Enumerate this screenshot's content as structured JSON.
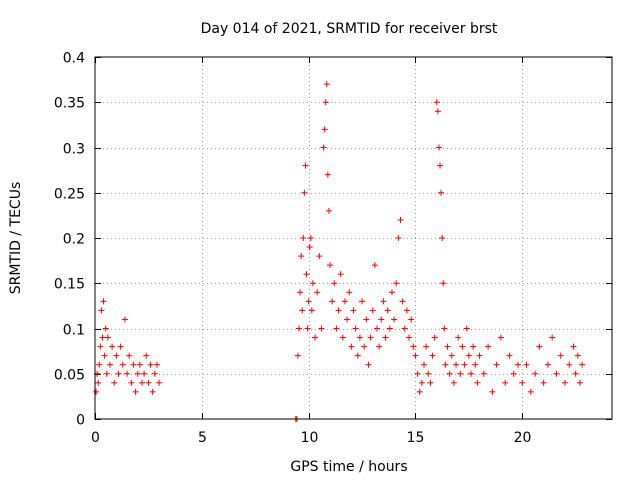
{
  "chart_data": {
    "type": "scatter",
    "title": "Day 014 of 2021, SRMTID for receiver brst",
    "xlabel": "GPS time / hours",
    "ylabel": "SRMTID / TECUs",
    "xlim": [
      0,
      24.2
    ],
    "ylim": [
      0,
      0.4
    ],
    "xticks": [
      0,
      5,
      10,
      15,
      20
    ],
    "xtick_labels": [
      "0",
      "5",
      "10",
      "15",
      "20"
    ],
    "yticks": [
      0,
      0.05,
      0.1,
      0.15,
      0.2,
      0.25,
      0.3,
      0.35,
      0.4
    ],
    "ytick_labels": [
      "0",
      "0.05",
      "0.1",
      "0.15",
      "0.2",
      "0.25",
      "0.3",
      "0.35",
      "0.4"
    ],
    "grid": true,
    "marker": "plus",
    "color": "#ff0000",
    "series": [
      {
        "name": "SRMTID",
        "points": [
          [
            0.05,
            0.03
          ],
          [
            0.1,
            0.05
          ],
          [
            0.15,
            0.04
          ],
          [
            0.2,
            0.06
          ],
          [
            0.25,
            0.08
          ],
          [
            0.3,
            0.12
          ],
          [
            0.35,
            0.09
          ],
          [
            0.4,
            0.13
          ],
          [
            0.45,
            0.07
          ],
          [
            0.5,
            0.1
          ],
          [
            0.55,
            0.05
          ],
          [
            0.6,
            0.09
          ],
          [
            0.7,
            0.06
          ],
          [
            0.8,
            0.08
          ],
          [
            0.9,
            0.04
          ],
          [
            1.0,
            0.07
          ],
          [
            1.1,
            0.05
          ],
          [
            1.2,
            0.08
          ],
          [
            1.3,
            0.06
          ],
          [
            1.4,
            0.11
          ],
          [
            1.5,
            0.05
          ],
          [
            1.6,
            0.07
          ],
          [
            1.7,
            0.04
          ],
          [
            1.8,
            0.06
          ],
          [
            1.9,
            0.03
          ],
          [
            2.0,
            0.05
          ],
          [
            2.1,
            0.06
          ],
          [
            2.2,
            0.04
          ],
          [
            2.3,
            0.05
          ],
          [
            2.4,
            0.07
          ],
          [
            2.5,
            0.04
          ],
          [
            2.6,
            0.06
          ],
          [
            2.7,
            0.03
          ],
          [
            2.8,
            0.05
          ],
          [
            2.9,
            0.06
          ],
          [
            3.0,
            0.04
          ],
          [
            9.4,
            0.0
          ],
          [
            9.45,
            0.0
          ],
          [
            9.5,
            0.07
          ],
          [
            9.55,
            0.1
          ],
          [
            9.6,
            0.14
          ],
          [
            9.65,
            0.18
          ],
          [
            9.7,
            0.12
          ],
          [
            9.75,
            0.2
          ],
          [
            9.8,
            0.25
          ],
          [
            9.85,
            0.28
          ],
          [
            9.9,
            0.16
          ],
          [
            9.95,
            0.1
          ],
          [
            10.0,
            0.13
          ],
          [
            10.05,
            0.19
          ],
          [
            10.1,
            0.2
          ],
          [
            10.15,
            0.12
          ],
          [
            10.2,
            0.15
          ],
          [
            10.3,
            0.09
          ],
          [
            10.4,
            0.14
          ],
          [
            10.5,
            0.18
          ],
          [
            10.6,
            0.1
          ],
          [
            10.7,
            0.3
          ],
          [
            10.75,
            0.32
          ],
          [
            10.8,
            0.35
          ],
          [
            10.85,
            0.37
          ],
          [
            10.9,
            0.27
          ],
          [
            10.95,
            0.23
          ],
          [
            11.0,
            0.17
          ],
          [
            11.1,
            0.13
          ],
          [
            11.2,
            0.15
          ],
          [
            11.3,
            0.1
          ],
          [
            11.4,
            0.12
          ],
          [
            11.5,
            0.16
          ],
          [
            11.6,
            0.09
          ],
          [
            11.7,
            0.13
          ],
          [
            11.8,
            0.11
          ],
          [
            11.9,
            0.14
          ],
          [
            12.0,
            0.08
          ],
          [
            12.1,
            0.12
          ],
          [
            12.2,
            0.1
          ],
          [
            12.3,
            0.07
          ],
          [
            12.4,
            0.09
          ],
          [
            12.5,
            0.13
          ],
          [
            12.6,
            0.08
          ],
          [
            12.7,
            0.11
          ],
          [
            12.8,
            0.06
          ],
          [
            12.9,
            0.09
          ],
          [
            13.0,
            0.12
          ],
          [
            13.1,
            0.17
          ],
          [
            13.2,
            0.1
          ],
          [
            13.3,
            0.08
          ],
          [
            13.4,
            0.11
          ],
          [
            13.5,
            0.13
          ],
          [
            13.6,
            0.09
          ],
          [
            13.7,
            0.12
          ],
          [
            13.8,
            0.1
          ],
          [
            13.9,
            0.14
          ],
          [
            14.0,
            0.11
          ],
          [
            14.1,
            0.15
          ],
          [
            14.2,
            0.2
          ],
          [
            14.3,
            0.22
          ],
          [
            14.4,
            0.13
          ],
          [
            14.5,
            0.1
          ],
          [
            14.6,
            0.12
          ],
          [
            14.7,
            0.09
          ],
          [
            14.8,
            0.11
          ],
          [
            14.9,
            0.08
          ],
          [
            15.0,
            0.07
          ],
          [
            15.1,
            0.05
          ],
          [
            15.2,
            0.03
          ],
          [
            15.3,
            0.04
          ],
          [
            15.4,
            0.06
          ],
          [
            15.5,
            0.08
          ],
          [
            15.6,
            0.05
          ],
          [
            15.7,
            0.04
          ],
          [
            15.8,
            0.07
          ],
          [
            15.9,
            0.09
          ],
          [
            16.0,
            0.35
          ],
          [
            16.05,
            0.34
          ],
          [
            16.1,
            0.3
          ],
          [
            16.15,
            0.28
          ],
          [
            16.2,
            0.25
          ],
          [
            16.25,
            0.2
          ],
          [
            16.3,
            0.15
          ],
          [
            16.35,
            0.1
          ],
          [
            16.4,
            0.06
          ],
          [
            16.5,
            0.08
          ],
          [
            16.6,
            0.05
          ],
          [
            16.7,
            0.07
          ],
          [
            16.8,
            0.04
          ],
          [
            16.9,
            0.06
          ],
          [
            17.0,
            0.09
          ],
          [
            17.1,
            0.05
          ],
          [
            17.2,
            0.08
          ],
          [
            17.3,
            0.06
          ],
          [
            17.4,
            0.1
          ],
          [
            17.5,
            0.07
          ],
          [
            17.6,
            0.05
          ],
          [
            17.7,
            0.08
          ],
          [
            17.8,
            0.06
          ],
          [
            17.9,
            0.04
          ],
          [
            18.0,
            0.07
          ],
          [
            18.2,
            0.05
          ],
          [
            18.4,
            0.08
          ],
          [
            18.6,
            0.03
          ],
          [
            18.8,
            0.06
          ],
          [
            19.0,
            0.09
          ],
          [
            19.2,
            0.04
          ],
          [
            19.4,
            0.07
          ],
          [
            19.6,
            0.05
          ],
          [
            19.8,
            0.06
          ],
          [
            20.0,
            0.04
          ],
          [
            20.2,
            0.06
          ],
          [
            20.4,
            0.03
          ],
          [
            20.6,
            0.05
          ],
          [
            20.8,
            0.08
          ],
          [
            21.0,
            0.04
          ],
          [
            21.2,
            0.06
          ],
          [
            21.4,
            0.09
          ],
          [
            21.6,
            0.05
          ],
          [
            21.8,
            0.07
          ],
          [
            22.0,
            0.04
          ],
          [
            22.2,
            0.06
          ],
          [
            22.4,
            0.08
          ],
          [
            22.5,
            0.05
          ],
          [
            22.6,
            0.07
          ],
          [
            22.7,
            0.04
          ],
          [
            22.8,
            0.06
          ]
        ]
      }
    ]
  }
}
